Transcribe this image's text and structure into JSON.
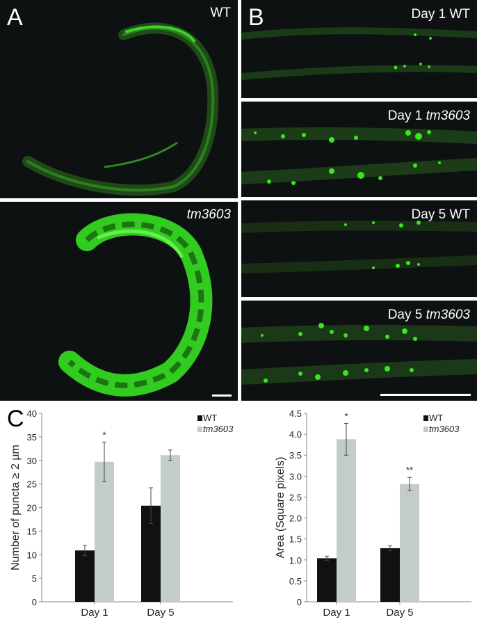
{
  "panels": {
    "A": {
      "letter": "A",
      "top_label": "WT",
      "bottom_label": "tm3603"
    },
    "B": {
      "letter": "B",
      "images": [
        {
          "label_prefix": "Day 1 ",
          "label_plain": "Day 1 WT",
          "label_italic": ""
        },
        {
          "label_prefix": "Day 1 ",
          "label_plain": "",
          "label_italic": "tm3603"
        },
        {
          "label_prefix": "Day 5 ",
          "label_plain": "Day 5 WT",
          "label_italic": ""
        },
        {
          "label_prefix": "Day 5 ",
          "label_plain": "",
          "label_italic": "tm3603"
        }
      ]
    },
    "C": {
      "letter": "C"
    }
  },
  "colors": {
    "wt": "#111111",
    "mutant": "#c3cccb",
    "gfp": "#39e61f",
    "image_bg": "#0d1111"
  },
  "chart_data": [
    {
      "type": "bar",
      "categories": [
        "Day 1",
        "Day 5"
      ],
      "ylabel": "Number of puncta ≥ 2 µm",
      "ylim": [
        0,
        40
      ],
      "yticks": [
        0,
        5,
        10,
        15,
        20,
        25,
        30,
        35,
        40
      ],
      "series": [
        {
          "name": "WT",
          "values": [
            10.9,
            20.4
          ],
          "errors": [
            1.1,
            3.8
          ]
        },
        {
          "name": "tm3603",
          "values": [
            29.7,
            31.1
          ],
          "errors": [
            4.2,
            1.1
          ]
        }
      ],
      "annotations": [
        {
          "category": "Day 1",
          "series": "tm3603",
          "text": "*"
        }
      ],
      "legend": "top-right"
    },
    {
      "type": "bar",
      "categories": [
        "Day 1",
        "Day 5"
      ],
      "ylabel": "Area (Square pixels)",
      "ylim": [
        0,
        4.5
      ],
      "yticks": [
        "0",
        "0.5",
        "1.0",
        "1.5",
        "2.0",
        "2.5",
        "3.0",
        "3.5",
        "4.0",
        "4.5"
      ],
      "series": [
        {
          "name": "WT",
          "values": [
            1.04,
            1.28
          ],
          "errors": [
            0.05,
            0.06
          ]
        },
        {
          "name": "tm3603",
          "values": [
            3.88,
            2.81
          ],
          "errors": [
            0.38,
            0.16
          ]
        }
      ],
      "annotations": [
        {
          "category": "Day 1",
          "series": "tm3603",
          "text": "*"
        },
        {
          "category": "Day 5",
          "series": "tm3603",
          "text": "**"
        }
      ],
      "legend": "top-right"
    }
  ]
}
